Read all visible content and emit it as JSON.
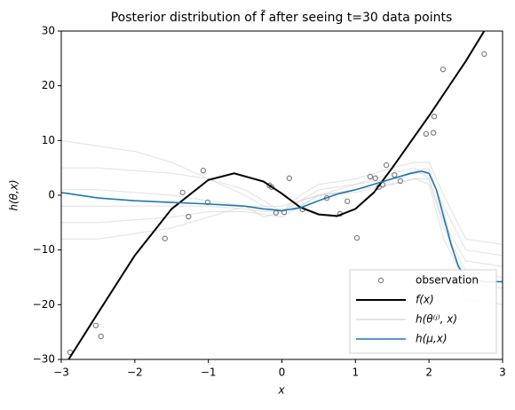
{
  "chart_data": {
    "type": "line",
    "title": "Posterior distribution of f̃ after seeing t=30 data points",
    "xlabel": "x",
    "ylabel": "h(θ,x)",
    "xlim": [
      -3,
      3
    ],
    "ylim": [
      -30,
      30
    ],
    "xticks": [
      {
        "value": -3,
        "label": "−3"
      },
      {
        "value": -2,
        "label": "−2"
      },
      {
        "value": -1,
        "label": "−1"
      },
      0,
      1,
      2,
      3
    ],
    "yticks": [
      {
        "value": -30,
        "label": "−30"
      },
      {
        "value": -20,
        "label": "−20"
      },
      {
        "value": -10,
        "label": "−10"
      },
      0,
      10,
      20,
      30
    ],
    "legend": "lower right",
    "samples": {
      "name": "h(θ⁽ʲ⁾, x)",
      "color": "#d3d3d3",
      "x": [
        -3,
        -2.5,
        -2,
        -1.5,
        -1,
        -0.5,
        -0.25,
        0,
        0.25,
        0.5,
        1,
        1.5,
        1.8,
        2,
        2.2,
        2.5,
        3
      ],
      "curves": [
        [
          5,
          5,
          4.5,
          4,
          3,
          1,
          -1,
          -3,
          -2,
          0,
          2,
          4,
          5,
          3,
          -5,
          -12,
          -13
        ],
        [
          -5,
          -5,
          -4.5,
          -4,
          -3,
          -3,
          -3.5,
          -4,
          -2,
          0,
          1,
          2,
          3,
          2,
          -8,
          -16,
          -17
        ],
        [
          10,
          9,
          8,
          6,
          3,
          0,
          -2,
          -3,
          -1,
          1,
          2,
          3,
          4,
          4,
          -2,
          -10,
          -11
        ],
        [
          -2,
          -2,
          -2,
          -2,
          -2,
          -2.5,
          -3,
          -3,
          -1,
          0,
          1,
          3,
          4.5,
          5,
          -3,
          -19,
          -20
        ],
        [
          1,
          1,
          0.5,
          0,
          -1,
          -2,
          -4,
          -3,
          0,
          2,
          3,
          5,
          6,
          6,
          0,
          -8,
          -9
        ],
        [
          -8,
          -8,
          -7,
          -6,
          -4,
          -2,
          -2,
          -2,
          -1,
          0,
          0.5,
          2,
          3,
          3,
          -6,
          -14,
          -15
        ]
      ]
    },
    "series": [
      {
        "name": "observation",
        "type": "scatter",
        "color": "#808080",
        "x": [
          -2.88,
          -2.53,
          -2.46,
          -1.59,
          -1.35,
          -1.27,
          -1.07,
          -1.01,
          -0.17,
          -0.14,
          -0.08,
          0.03,
          0.1,
          0.28,
          0.61,
          0.79,
          0.89,
          1.02,
          1.2,
          1.27,
          1.32,
          1.37,
          1.42,
          1.53,
          1.61,
          1.96,
          2.06,
          2.07,
          2.19,
          2.75
        ],
        "values": [
          -28.7,
          -23.8,
          -25.8,
          -7.9,
          0.5,
          -3.9,
          4.5,
          -1.3,
          1.8,
          1.5,
          -3.2,
          -3.1,
          3.1,
          -2.6,
          -0.5,
          -3.4,
          -1.1,
          -7.8,
          3.4,
          3.1,
          1.5,
          1.9,
          5.5,
          3.7,
          2.6,
          11.2,
          11.4,
          14.4,
          23,
          25.8
        ]
      },
      {
        "name": "f(x)",
        "type": "line",
        "color": "#000000",
        "x": [
          -2.9,
          -2.5,
          -2,
          -1.5,
          -1,
          -0.65,
          -0.25,
          0,
          0.25,
          0.5,
          0.75,
          1,
          1.25,
          1.5,
          2,
          2.5,
          2.75
        ],
        "values": [
          -30,
          -21.5,
          -11,
          -2.5,
          2.8,
          4,
          2.5,
          0.3,
          -2.2,
          -3.5,
          -3.8,
          -2.5,
          0.5,
          5,
          14.5,
          24.5,
          30
        ]
      },
      {
        "name": "h(μ,x)",
        "type": "line",
        "color": "#1f77b4",
        "x": [
          -3,
          -2.5,
          -2,
          -1.5,
          -1,
          -0.5,
          -0.25,
          0,
          0.25,
          0.5,
          0.75,
          1,
          1.25,
          1.5,
          1.75,
          1.9,
          2,
          2.1,
          2.2,
          2.3,
          2.4,
          2.5,
          2.75,
          3
        ],
        "values": [
          0.5,
          -0.5,
          -1,
          -1.3,
          -1.6,
          -2,
          -2.5,
          -2.8,
          -2.3,
          -1,
          0.2,
          1,
          2,
          3,
          4,
          4.4,
          4,
          1,
          -4,
          -9,
          -13,
          -15,
          -15.8,
          -15.8
        ]
      }
    ]
  }
}
